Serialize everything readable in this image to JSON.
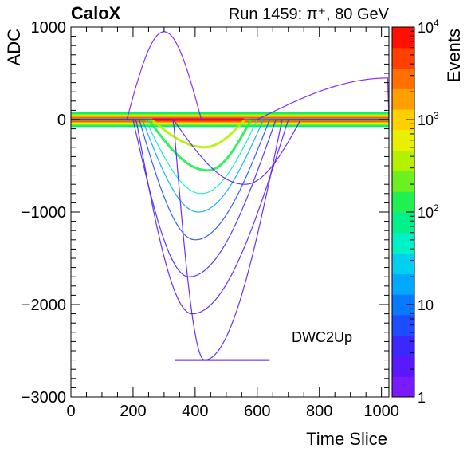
{
  "chart_data": {
    "type": "heatmap",
    "brand": "CaloX",
    "title": "Run 1459: π⁺, 80 GeV",
    "xlabel": "Time Slice",
    "ylabel": "ADC",
    "zlabel": "Events",
    "annotation": "DWC2Up",
    "xlim": [
      0,
      1024
    ],
    "ylim": [
      -3000,
      1000
    ],
    "zlim": [
      1,
      10000
    ],
    "zscale": "log",
    "x_ticks": [
      {
        "value": 0,
        "label": "0"
      },
      {
        "value": 200,
        "label": "200"
      },
      {
        "value": 400,
        "label": "400"
      },
      {
        "value": 600,
        "label": "600"
      },
      {
        "value": 800,
        "label": "800"
      },
      {
        "value": 1000,
        "label": "1000"
      }
    ],
    "y_ticks": [
      {
        "value": -3000,
        "label": "−3000"
      },
      {
        "value": -2000,
        "label": "−2000"
      },
      {
        "value": -1000,
        "label": "−1000"
      },
      {
        "value": 0,
        "label": "0"
      },
      {
        "value": 1000,
        "label": "1000"
      }
    ],
    "z_ticks": [
      {
        "value": 1,
        "label": "1"
      },
      {
        "value": 10,
        "label": "10"
      },
      {
        "value": 100,
        "label": "10",
        "sup": "2"
      },
      {
        "value": 1000,
        "label": "10",
        "sup": "3"
      },
      {
        "value": 10000,
        "label": "10",
        "sup": "4"
      }
    ],
    "baseline_band": {
      "y_center": 0,
      "y_halfwidth": 80,
      "peak_events": 8000
    },
    "saturation_level": -2600,
    "pulse_tracks": [
      {
        "t0": 260,
        "tpeak": 430,
        "t1": 560,
        "amp": -300,
        "events": 400
      },
      {
        "t0": 250,
        "tpeak": 440,
        "t1": 580,
        "amp": -550,
        "events": 120
      },
      {
        "t0": 240,
        "tpeak": 420,
        "t1": 600,
        "amp": -800,
        "events": 40
      },
      {
        "t0": 230,
        "tpeak": 410,
        "t1": 620,
        "amp": -1000,
        "events": 15
      },
      {
        "t0": 220,
        "tpeak": 400,
        "t1": 640,
        "amp": -1300,
        "events": 6
      },
      {
        "t0": 200,
        "tpeak": 380,
        "t1": 660,
        "amp": -1700,
        "events": 3
      },
      {
        "t0": 210,
        "tpeak": 390,
        "t1": 700,
        "amp": -2100,
        "events": 2
      },
      {
        "t0": 330,
        "tpeak": 430,
        "t1": 680,
        "amp": -2600,
        "events": 2
      },
      {
        "t0": 180,
        "tpeak": 300,
        "t1": 420,
        "amp": 950,
        "events": 1
      },
      {
        "t0": 600,
        "tpeak": 1024,
        "t1": 1024,
        "amp": 450,
        "events": 1
      },
      {
        "t0": 330,
        "tpeak": 560,
        "t1": 740,
        "amp": -700,
        "events": 2
      }
    ],
    "colors": {
      "palette": [
        "#7a1aff",
        "#5a18ff",
        "#3c28ff",
        "#1e4cff",
        "#0a78ff",
        "#00a8ff",
        "#00d0f0",
        "#00f0c8",
        "#00f08c",
        "#20f050",
        "#6cf020",
        "#b4f000",
        "#e8f000",
        "#ffd000",
        "#ffa000",
        "#ff7000",
        "#ff4000",
        "#ff1000"
      ]
    }
  }
}
